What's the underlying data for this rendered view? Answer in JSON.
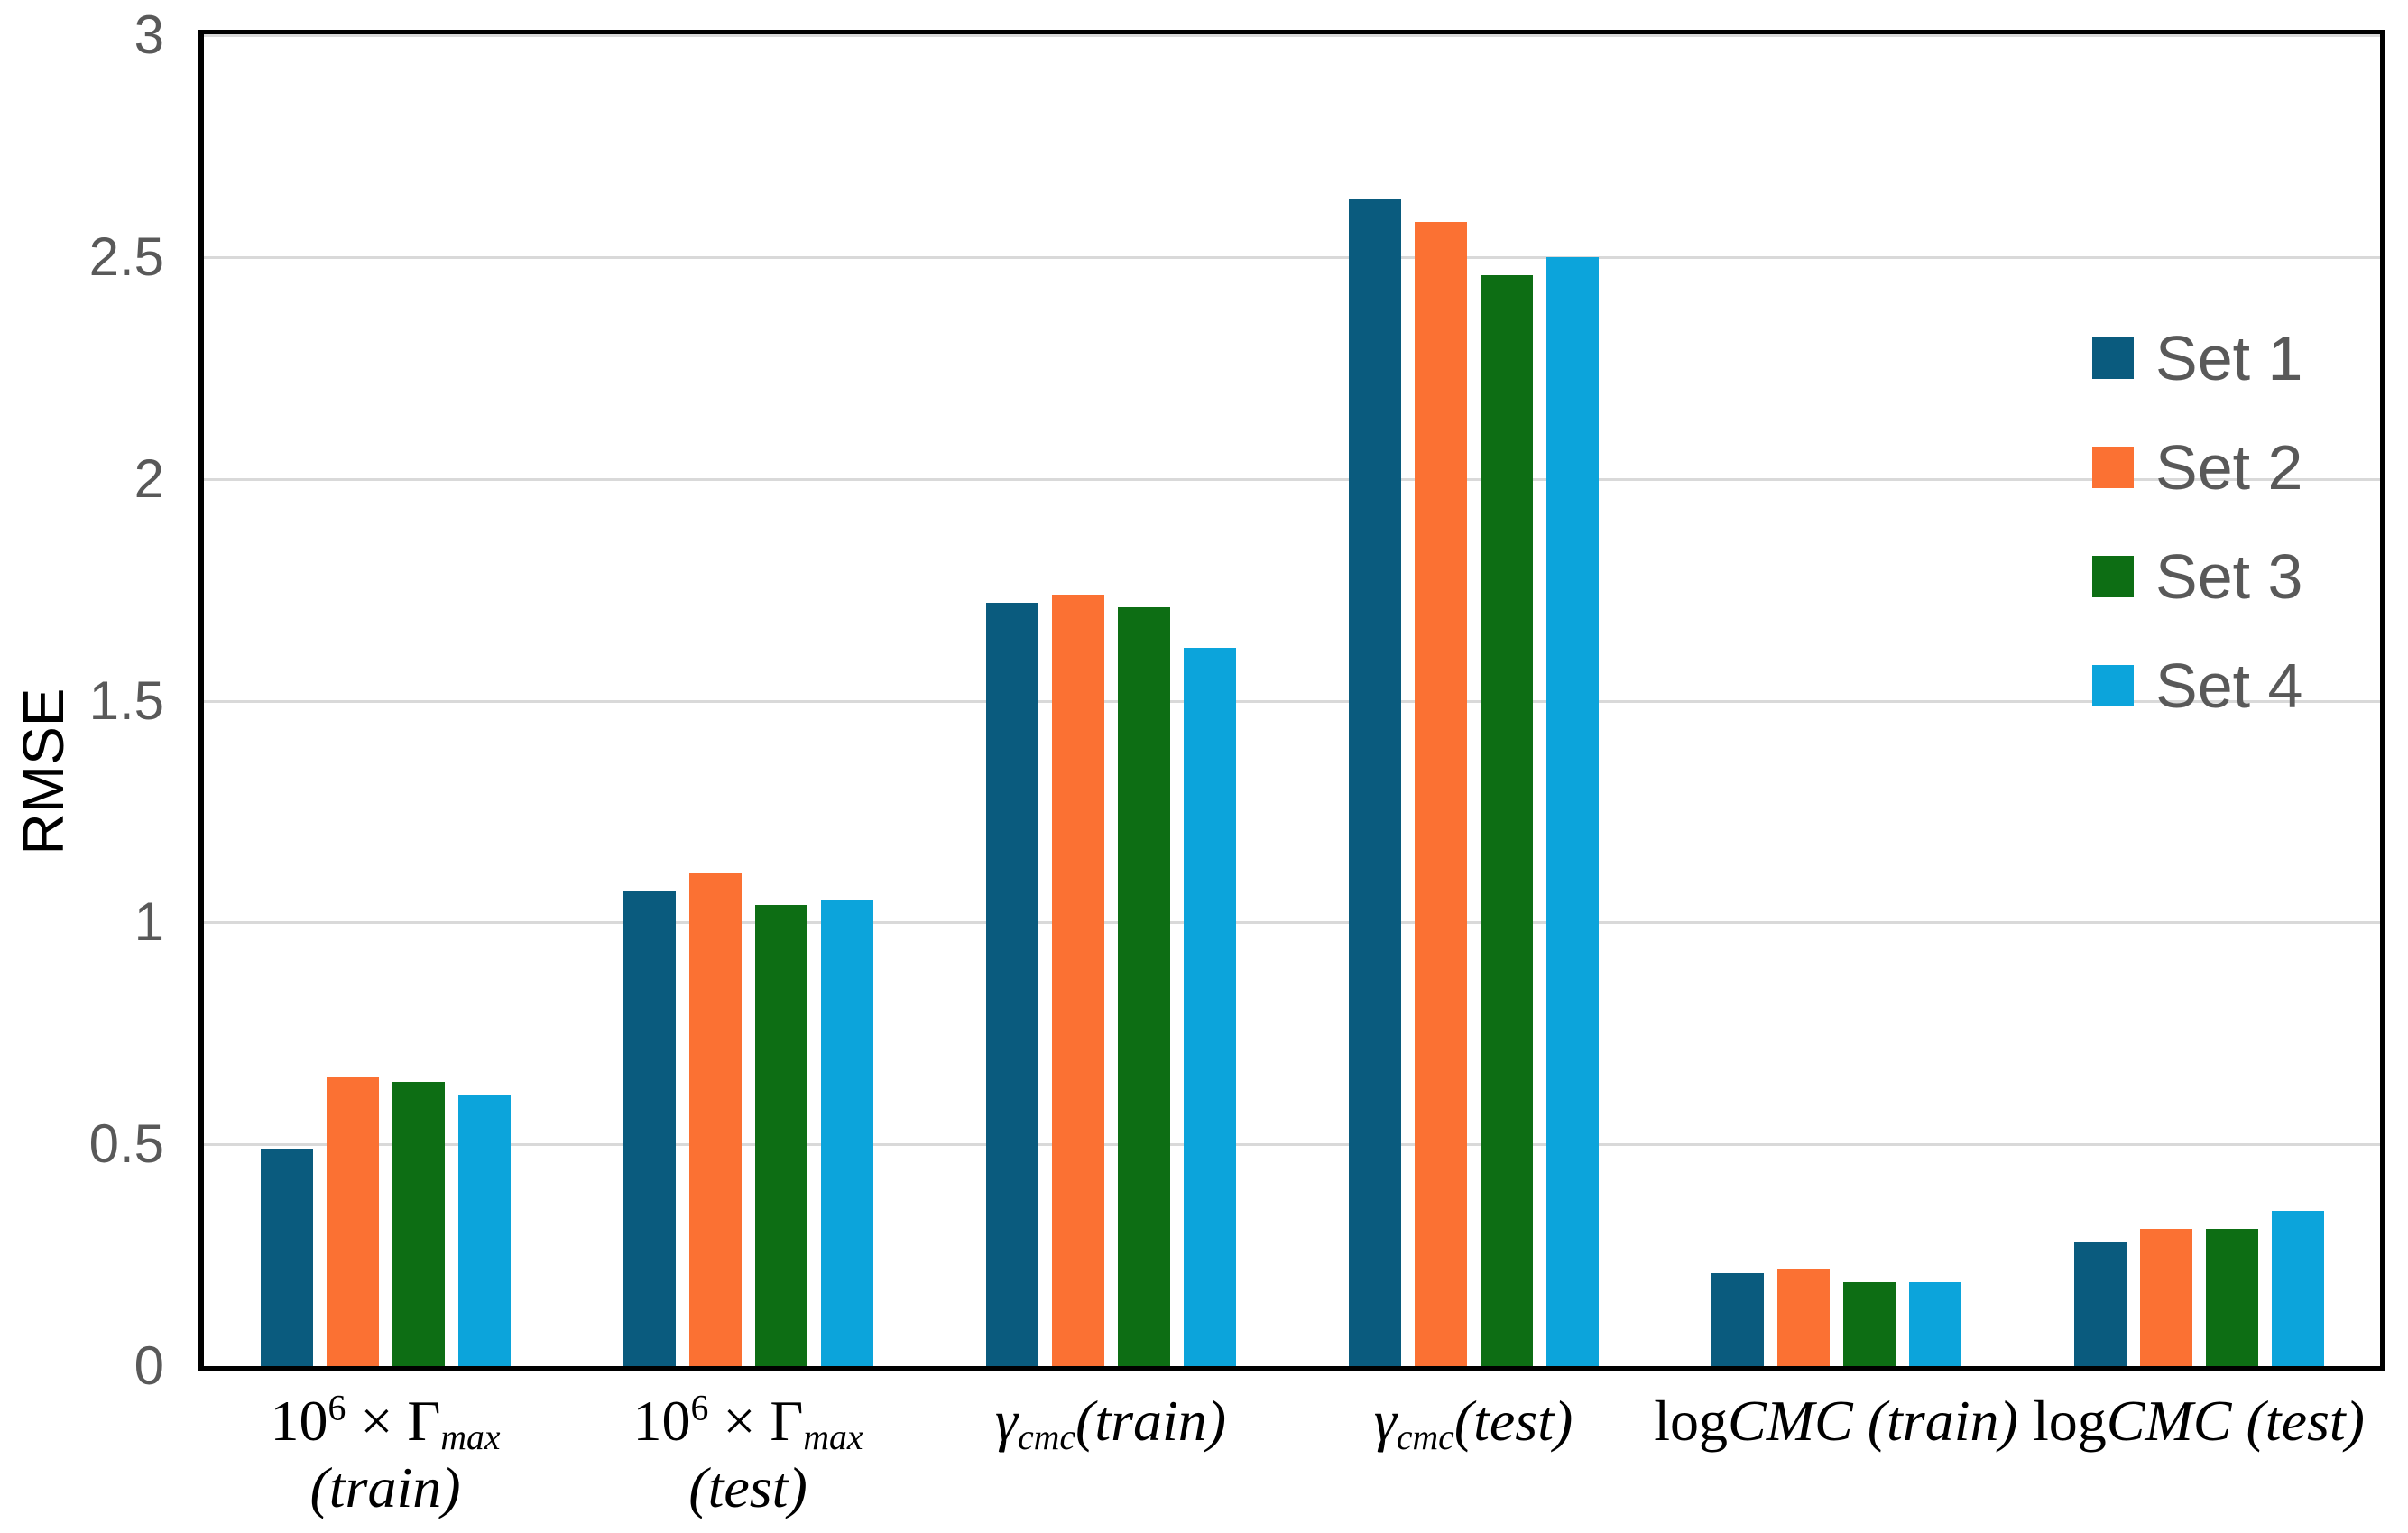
{
  "chart_data": {
    "type": "bar",
    "title": "",
    "ylabel": "RMSE",
    "ylim": [
      0,
      3
    ],
    "ytick_step": 0.5,
    "yticks": [
      "0",
      "0.5",
      "1",
      "1.5",
      "2",
      "2.5",
      "3"
    ],
    "grid": "horizontal-gray",
    "legend_position": "upper-right-inside",
    "categories": [
      "10⁶ × Γmax (train)",
      "10⁶ × Γmax (test)",
      "γcmc(train)",
      "γcmc(test)",
      "logCMC (train)",
      "logCMC (test)"
    ],
    "categories_rich": [
      [
        [
          {
            "t": "10",
            "s": "n"
          },
          {
            "t": "6",
            "s": "sup"
          },
          {
            "t": " × Γ",
            "s": "n"
          },
          {
            "t": "max",
            "s": "subi"
          }
        ],
        [
          {
            "t": "(train)",
            "s": "i"
          }
        ]
      ],
      [
        [
          {
            "t": "10",
            "s": "n"
          },
          {
            "t": "6",
            "s": "sup"
          },
          {
            "t": " × Γ",
            "s": "n"
          },
          {
            "t": "max",
            "s": "subi"
          }
        ],
        [
          {
            "t": "(test)",
            "s": "i"
          }
        ]
      ],
      [
        [
          {
            "t": "γ",
            "s": "i"
          },
          {
            "t": "cmc",
            "s": "subi"
          },
          {
            "t": "(train)",
            "s": "i"
          }
        ]
      ],
      [
        [
          {
            "t": "γ",
            "s": "i"
          },
          {
            "t": "cmc",
            "s": "subi"
          },
          {
            "t": "(test)",
            "s": "i"
          }
        ]
      ],
      [
        [
          {
            "t": "log",
            "s": "n"
          },
          {
            "t": "CMC",
            "s": "i"
          },
          {
            "t": " (train)",
            "s": "i"
          }
        ]
      ],
      [
        [
          {
            "t": "log",
            "s": "n"
          },
          {
            "t": "CMC",
            "s": "i"
          },
          {
            "t": " (test)",
            "s": "i"
          }
        ]
      ]
    ],
    "series": [
      {
        "name": "Set 1",
        "color": "#0a5b7e",
        "values": [
          0.49,
          1.07,
          1.72,
          2.63,
          0.21,
          0.28
        ]
      },
      {
        "name": "Set 2",
        "color": "#fb7133",
        "values": [
          0.65,
          1.11,
          1.74,
          2.58,
          0.22,
          0.31
        ]
      },
      {
        "name": "Set 3",
        "color": "#0d6e14",
        "values": [
          0.64,
          1.04,
          1.71,
          2.46,
          0.19,
          0.31
        ]
      },
      {
        "name": "Set 4",
        "color": "#0ca4db",
        "values": [
          0.61,
          1.05,
          1.62,
          2.5,
          0.19,
          0.35
        ]
      }
    ],
    "colors": {
      "axis_frame": "#000000",
      "gridline": "#d9d9d9",
      "tick_text": "#595959",
      "legend_text": "#595959",
      "category_text": "#000000",
      "background": "#ffffff"
    }
  }
}
